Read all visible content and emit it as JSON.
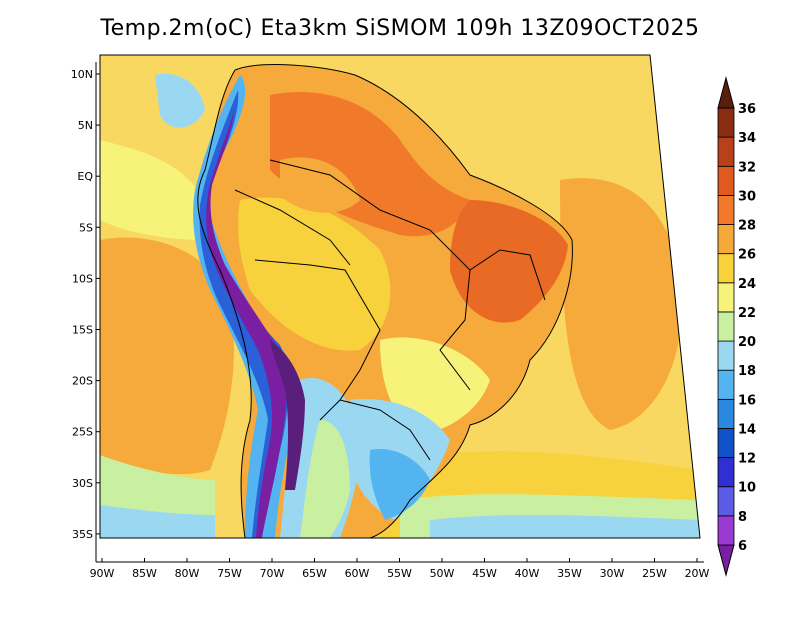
{
  "title": "Temp.2m(oC) Eta3km SiSMOM 109h 13Z09OCT2025",
  "map": {
    "lat_labels": [
      "10N",
      "5N",
      "EQ",
      "5S",
      "10S",
      "15S",
      "20S",
      "25S",
      "30S",
      "35S"
    ],
    "lon_labels": [
      "90W",
      "85W",
      "80W",
      "75W",
      "70W",
      "65W",
      "60W",
      "55W",
      "50W",
      "45W",
      "40W",
      "35W",
      "30W",
      "25W",
      "20W"
    ]
  },
  "colorbar": {
    "labels": [
      "6",
      "8",
      "10",
      "12",
      "14",
      "16",
      "18",
      "20",
      "22",
      "24",
      "26",
      "28",
      "30",
      "32",
      "34",
      "36"
    ],
    "colors": [
      "#7a1fa2",
      "#9a3ad0",
      "#5a5ce6",
      "#2f2fd2",
      "#1050c8",
      "#2a88e0",
      "#54b4f0",
      "#9ad8f2",
      "#c8f0a0",
      "#f6f27a",
      "#f8d23c",
      "#f6a83a",
      "#f07a2a",
      "#e05a20",
      "#b8401a",
      "#8a2c10",
      "#5a1e0c"
    ]
  }
}
